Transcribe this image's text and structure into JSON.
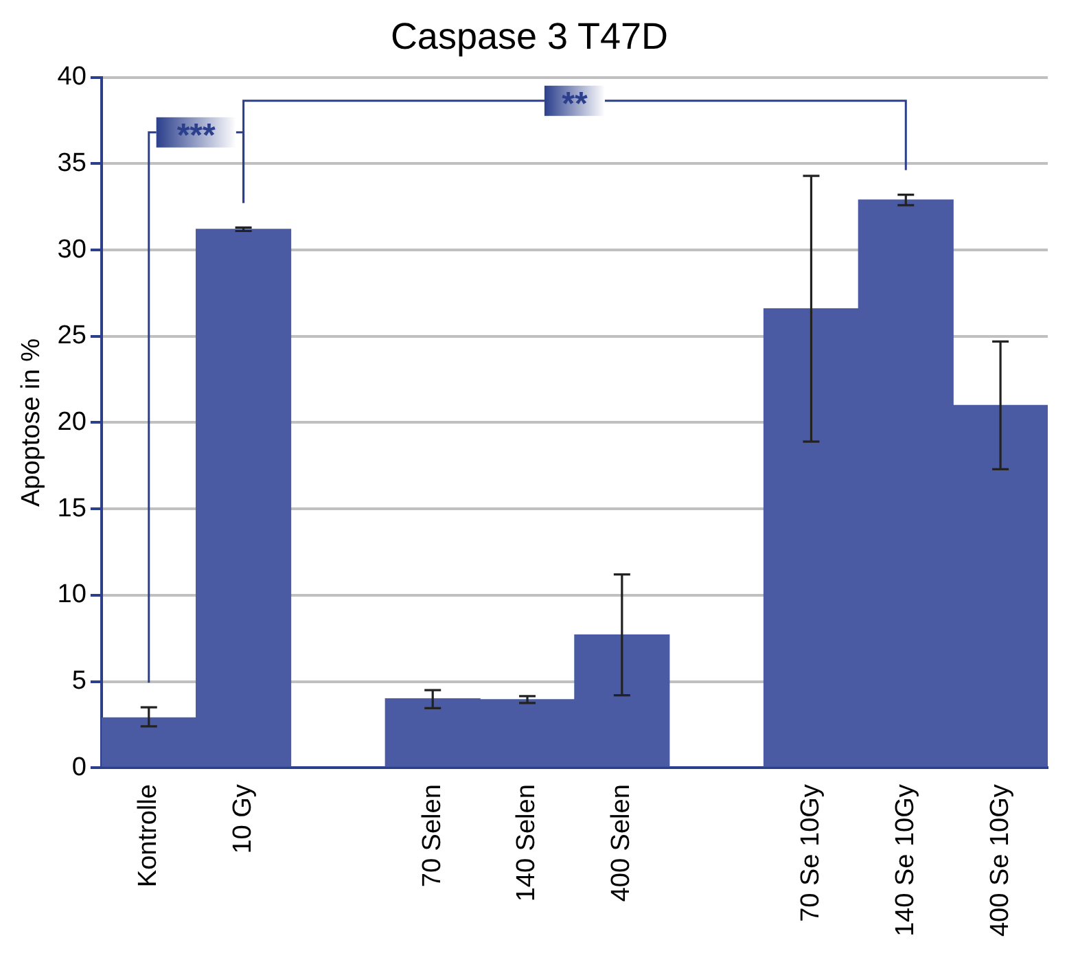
{
  "chart_data": {
    "type": "bar",
    "title": "Caspase 3 T47D",
    "ylabel": "Apoptose in %",
    "categories": [
      "Kontrolle",
      "10 Gy",
      null,
      "70 Selen",
      "140 Selen",
      "400 Selen",
      null,
      "70 Se 10Gy",
      "140 Se 10Gy",
      "400 Se 10Gy"
    ],
    "values": [
      2.9,
      31.2,
      null,
      4.0,
      3.95,
      7.7,
      null,
      26.6,
      32.9,
      21.0
    ],
    "errors": [
      [
        2.4,
        3.5
      ],
      [
        31.1,
        31.3
      ],
      null,
      [
        3.45,
        4.5
      ],
      [
        3.75,
        4.15
      ],
      [
        4.2,
        11.2
      ],
      null,
      [
        18.9,
        34.3
      ],
      [
        32.6,
        33.2
      ],
      [
        17.3,
        24.7
      ]
    ],
    "color": "#4a5ba3",
    "ylim": [
      0,
      40
    ],
    "yticks": [
      0,
      5,
      10,
      15,
      20,
      25,
      30,
      35,
      40
    ],
    "grid": "y",
    "annotations": [
      "***",
      "**"
    ]
  }
}
